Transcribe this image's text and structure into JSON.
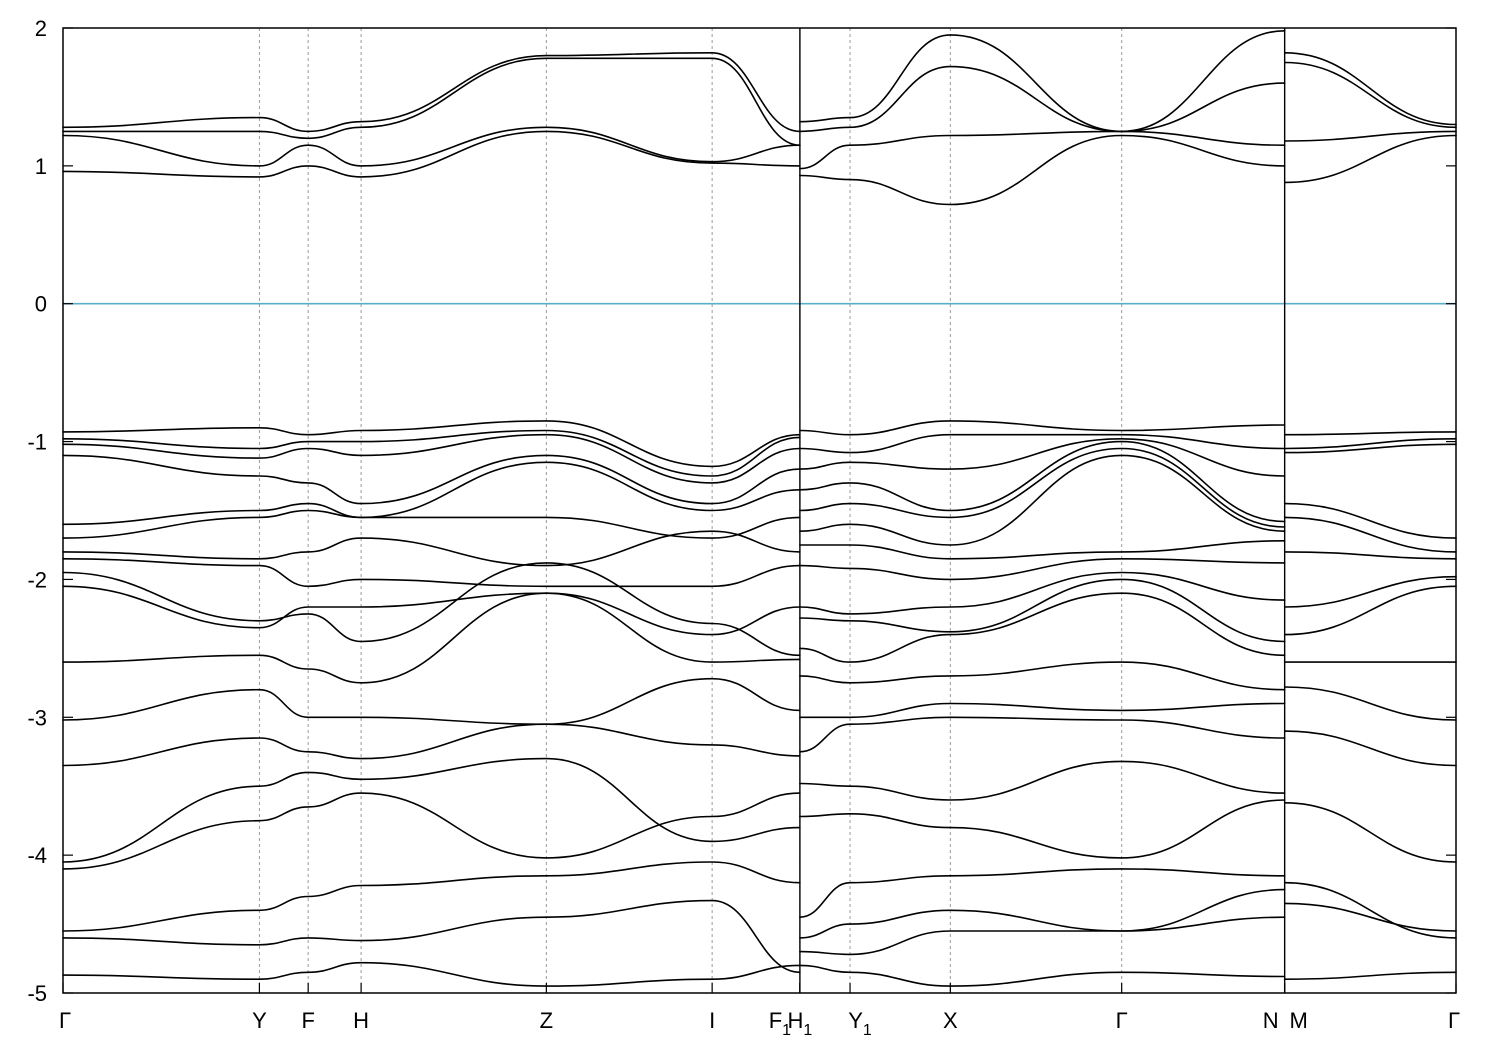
{
  "chart_data": {
    "type": "line",
    "title": "",
    "xlabel": "",
    "ylabel": "",
    "ylim": [
      -5,
      2
    ],
    "yticks": [
      -5,
      -4,
      -3,
      -2,
      -1,
      0,
      1,
      2
    ],
    "ytick_labels": [
      "-5",
      "-4",
      "-3",
      "-2",
      "-1",
      "0",
      "1",
      "2"
    ],
    "xlim": [
      0,
      10
    ],
    "grid": false,
    "legend": "none",
    "fermi_level": {
      "value": 0,
      "color": "#5aaec8"
    },
    "band_color": "#000000",
    "kpoints": [
      {
        "label": "Γ",
        "sub": "",
        "x": 0.0,
        "line": false
      },
      {
        "label": "Y",
        "sub": "",
        "x": 1.41,
        "line": true
      },
      {
        "label": "F",
        "sub": "",
        "x": 1.76,
        "line": true
      },
      {
        "label": "H",
        "sub": "",
        "x": 2.14,
        "line": true
      },
      {
        "label": "Z",
        "sub": "",
        "x": 3.47,
        "line": true
      },
      {
        "label": "I",
        "sub": "",
        "x": 4.66,
        "line": true
      },
      {
        "label": "F",
        "sub": "1",
        "x": 5.29,
        "line": true
      },
      {
        "label": "H",
        "sub": "1",
        "x": 5.29,
        "line": false
      },
      {
        "label": "Y",
        "sub": "1",
        "x": 5.65,
        "line": true
      },
      {
        "label": "X",
        "sub": "",
        "x": 6.37,
        "line": true
      },
      {
        "label": "Γ",
        "sub": "",
        "x": 7.6,
        "line": true
      },
      {
        "label": "N",
        "sub": "",
        "x": 8.77,
        "line": true
      },
      {
        "label": "M",
        "sub": "",
        "x": 8.77,
        "line": false
      },
      {
        "label": "Γ",
        "sub": "",
        "x": 10.0,
        "line": false
      }
    ],
    "breaks": [
      5.29,
      8.77
    ],
    "segments": [
      {
        "x": [
          0.0,
          1.41,
          1.76,
          2.14,
          3.47,
          4.66,
          5.29
        ],
        "bands": [
          [
            -4.87,
            -4.9,
            -4.85,
            -4.78,
            -4.95,
            -4.9,
            -4.8
          ],
          [
            -4.6,
            -4.65,
            -4.6,
            -4.62,
            -4.45,
            -4.33,
            -4.85
          ],
          [
            -4.55,
            -4.4,
            -4.3,
            -4.22,
            -4.15,
            -4.05,
            -4.2
          ],
          [
            -4.1,
            -3.75,
            -3.65,
            -3.55,
            -4.02,
            -3.72,
            -3.55
          ],
          [
            -4.05,
            -3.5,
            -3.4,
            -3.45,
            -3.3,
            -3.9,
            -3.8
          ],
          [
            -3.35,
            -3.15,
            -3.25,
            -3.3,
            -3.05,
            -3.2,
            -3.28
          ],
          [
            -3.02,
            -2.8,
            -3.0,
            -3.0,
            -3.05,
            -2.72,
            -2.95
          ],
          [
            -2.6,
            -2.55,
            -2.65,
            -2.75,
            -2.1,
            -2.6,
            -2.58
          ],
          [
            -2.05,
            -2.35,
            -2.2,
            -2.2,
            -2.1,
            -2.4,
            -2.2
          ],
          [
            -1.95,
            -2.3,
            -2.25,
            -2.45,
            -1.88,
            -2.32,
            -2.55
          ],
          [
            -1.85,
            -1.9,
            -2.05,
            -2.0,
            -2.05,
            -2.05,
            -1.9
          ],
          [
            -1.8,
            -1.85,
            -1.8,
            -1.7,
            -1.9,
            -1.65,
            -1.8
          ],
          [
            -1.7,
            -1.55,
            -1.5,
            -1.55,
            -1.55,
            -1.7,
            -1.55
          ],
          [
            -1.6,
            -1.5,
            -1.45,
            -1.55,
            -1.15,
            -1.5,
            -1.35
          ],
          [
            -1.1,
            -1.25,
            -1.3,
            -1.45,
            -1.1,
            -1.45,
            -1.2
          ],
          [
            -1.02,
            -1.12,
            -1.05,
            -1.1,
            -0.95,
            -1.3,
            -1.05
          ],
          [
            -0.98,
            -1.05,
            -1.0,
            -1.0,
            -0.92,
            -1.25,
            -0.97
          ],
          [
            -0.93,
            -0.9,
            -0.95,
            -0.92,
            -0.85,
            -1.18,
            -0.95
          ],
          [
            0.96,
            0.92,
            1.0,
            0.92,
            1.25,
            1.02,
            1.0
          ],
          [
            1.22,
            1.0,
            1.15,
            1.0,
            1.28,
            1.03,
            1.15
          ],
          [
            1.25,
            1.25,
            1.2,
            1.28,
            1.78,
            1.78,
            1.15
          ],
          [
            1.28,
            1.35,
            1.25,
            1.32,
            1.8,
            1.82,
            1.25
          ]
        ]
      },
      {
        "x": [
          5.29,
          5.65,
          6.37,
          7.6,
          8.77
        ],
        "bands": [
          [
            -4.8,
            -4.85,
            -4.95,
            -4.85,
            -4.88
          ],
          [
            -4.7,
            -4.72,
            -4.55,
            -4.55,
            -4.45
          ],
          [
            -4.6,
            -4.5,
            -4.4,
            -4.55,
            -4.25
          ],
          [
            -4.45,
            -4.2,
            -4.15,
            -4.1,
            -4.15
          ],
          [
            -3.72,
            -3.7,
            -3.8,
            -4.02,
            -3.6
          ],
          [
            -3.48,
            -3.5,
            -3.6,
            -3.32,
            -3.55
          ],
          [
            -3.25,
            -3.05,
            -3.0,
            -3.02,
            -3.15
          ],
          [
            -3.0,
            -3.0,
            -2.9,
            -2.95,
            -2.9
          ],
          [
            -2.7,
            -2.75,
            -2.7,
            -2.6,
            -2.8
          ],
          [
            -2.5,
            -2.6,
            -2.4,
            -2.1,
            -2.55
          ],
          [
            -2.28,
            -2.3,
            -2.38,
            -2.0,
            -2.45
          ],
          [
            -2.2,
            -2.25,
            -2.2,
            -1.95,
            -2.15
          ],
          [
            -1.9,
            -1.92,
            -2.0,
            -1.85,
            -1.88
          ],
          [
            -1.75,
            -1.75,
            -1.85,
            -1.8,
            -1.72
          ],
          [
            -1.65,
            -1.6,
            -1.75,
            -1.1,
            -1.65
          ],
          [
            -1.5,
            -1.45,
            -1.55,
            -1.05,
            -1.62
          ],
          [
            -1.35,
            -1.3,
            -1.5,
            -1.0,
            -1.58
          ],
          [
            -1.2,
            -1.15,
            -1.2,
            -0.98,
            -1.25
          ],
          [
            -1.05,
            -1.08,
            -0.95,
            -0.95,
            -1.05
          ],
          [
            -0.92,
            -0.95,
            -0.85,
            -0.92,
            -0.88
          ],
          [
            0.93,
            0.9,
            0.72,
            1.22,
            1.0
          ],
          [
            0.98,
            1.15,
            1.22,
            1.25,
            1.15
          ],
          [
            1.25,
            1.28,
            1.72,
            1.25,
            1.6
          ],
          [
            1.32,
            1.35,
            1.95,
            1.25,
            1.98
          ]
        ]
      },
      {
        "x": [
          8.77,
          10.0
        ],
        "bands": [
          [
            -4.9,
            -4.85
          ],
          [
            -4.35,
            -4.55
          ],
          [
            -4.2,
            -4.6
          ],
          [
            -3.62,
            -4.05
          ],
          [
            -3.1,
            -3.35
          ],
          [
            -2.78,
            -3.02
          ],
          [
            -2.6,
            -2.6
          ],
          [
            -2.4,
            -2.05
          ],
          [
            -2.2,
            -1.98
          ],
          [
            -1.8,
            -1.85
          ],
          [
            -1.55,
            -1.8
          ],
          [
            -1.45,
            -1.7
          ],
          [
            -1.08,
            -1.02
          ],
          [
            -1.05,
            -0.98
          ],
          [
            -0.95,
            -0.93
          ],
          [
            0.88,
            1.22
          ],
          [
            1.18,
            1.25
          ],
          [
            1.75,
            1.28
          ],
          [
            1.82,
            1.3
          ]
        ]
      }
    ]
  }
}
